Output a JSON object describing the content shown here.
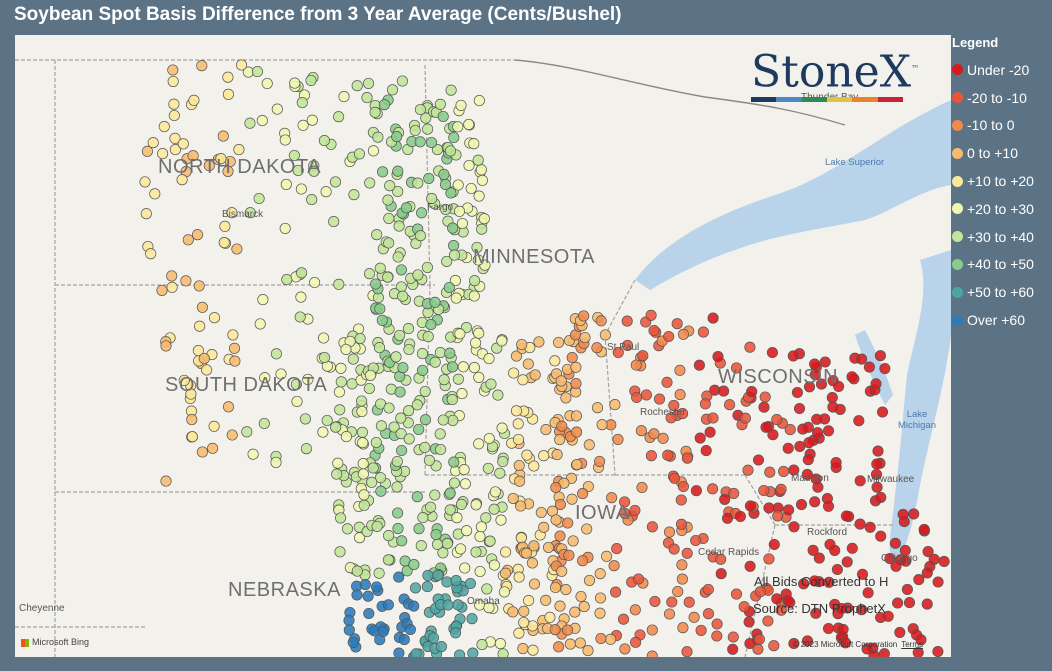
{
  "title": "Soybean Spot Basis Difference from 3 Year Average (Cents/Bushel)",
  "legend": {
    "title": "Legend",
    "items": [
      {
        "label": "Under -20",
        "color": "#d7191c"
      },
      {
        "label": "-20 to -10",
        "color": "#e8553a"
      },
      {
        "label": "-10 to 0",
        "color": "#f08a4b"
      },
      {
        "label": "0 to +10",
        "color": "#f7bb6e"
      },
      {
        "label": "+10 to +20",
        "color": "#fce79a"
      },
      {
        "label": "+20 to +30",
        "color": "#eff7b0"
      },
      {
        "label": "+30 to +40",
        "color": "#c2e599"
      },
      {
        "label": "+40 to +50",
        "color": "#88cc8a"
      },
      {
        "label": "+50 to +60",
        "color": "#4ea6a4"
      },
      {
        "label": "Over +60",
        "color": "#2b7bba"
      }
    ]
  },
  "map": {
    "states": [
      "NORTH DAKOTA",
      "MINNESOTA",
      "SOUTH DAKOTA",
      "WISCONSIN",
      "IOWA",
      "NEBRASKA"
    ],
    "cities": [
      "Bismarck",
      "Fargo",
      "St Paul",
      "Rochester",
      "Madison",
      "Milwaukee",
      "Rockford",
      "Cedar Rapids",
      "Chicago",
      "Omaha",
      "Cheyenne",
      "Thunder Bay"
    ],
    "water": [
      "Lake Superior",
      "Lake Michigan"
    ]
  },
  "logo": {
    "text": "StoneX",
    "tm": "™"
  },
  "notes": {
    "line1": "All Bids Converted to H",
    "line2": "Source: DTN ProphetX"
  },
  "attribution": {
    "bing": "Microsoft Bing",
    "copyright": "© 2023 Microsoft Corporation",
    "terms": "Terms"
  }
}
